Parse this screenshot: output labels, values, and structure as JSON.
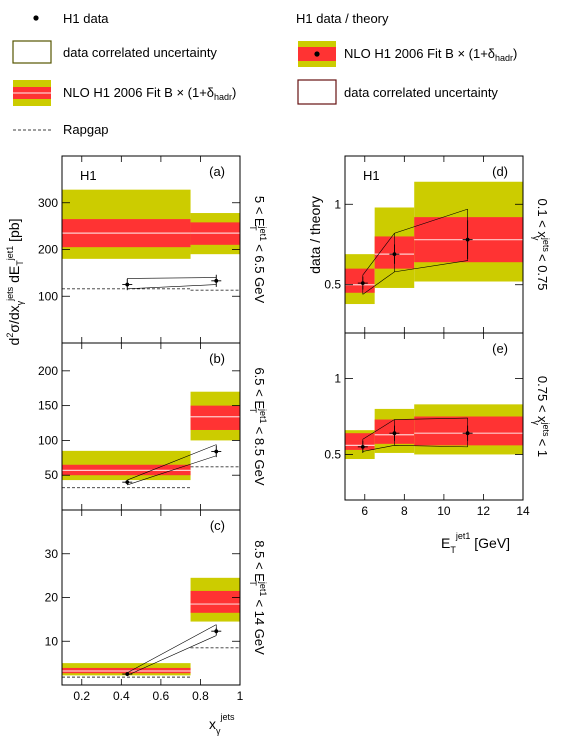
{
  "legend": {
    "h1_data": "H1 data",
    "corr_unc": "data correlated uncertainty",
    "nlo": "NLO H1 2006 Fit B × (1+δ",
    "nlo_sub": "hadr",
    "nlo_end": ")",
    "rapgap": "Rapgap",
    "ratio_title": "H1 data / theory"
  },
  "colors": {
    "scale_band": "#cccc00",
    "pdf_band": "#ff3333",
    "central": "#ffcccc",
    "corr_box_left": "#555500",
    "corr_box_right": "#661111"
  },
  "chart_data": [
    {
      "id": "a",
      "type": "bar",
      "tag": "H1",
      "letter": "(a)",
      "ylabel": "d²σ/dx_γ^jets dE_T^jet1 [pb]",
      "side_label": {
        "pre": "5 < E",
        "sup": "jet1",
        "sub": "T",
        "post": " < 6.5 GeV"
      },
      "xlim": [
        0.1,
        1.0
      ],
      "ylim": [
        0,
        400
      ],
      "yticks": [
        100,
        200,
        300
      ],
      "bins": [
        [
          0.1,
          0.75
        ],
        [
          0.75,
          1.0
        ]
      ],
      "data": [
        {
          "x": 0.43,
          "y": 125,
          "err": 12
        },
        {
          "x": 0.88,
          "y": 133,
          "err": 13
        }
      ],
      "nlo": [
        {
          "central": 235,
          "pdf": [
            205,
            265
          ],
          "scale": [
            180,
            328
          ]
        },
        {
          "central": 235,
          "pdf": [
            210,
            258
          ],
          "scale": [
            190,
            278
          ]
        }
      ],
      "corr": [
        {
          "x": [
            0.43,
            0.88
          ],
          "lo": [
            116,
            125
          ],
          "hi": [
            138,
            140
          ]
        }
      ],
      "rapgap": [
        {
          "x": [
            0.1,
            0.75
          ],
          "y": [
            116,
            116
          ]
        },
        {
          "x": [
            0.75,
            1.0
          ],
          "y": [
            113,
            113
          ]
        }
      ]
    },
    {
      "id": "b",
      "type": "bar",
      "letter": "(b)",
      "side_label": {
        "pre": "6.5 < E",
        "sup": "jet1",
        "sub": "T",
        "post": " < 8.5 GeV"
      },
      "xlim": [
        0.1,
        1.0
      ],
      "ylim": [
        0,
        240
      ],
      "yticks": [
        50,
        100,
        150,
        200
      ],
      "bins": [
        [
          0.1,
          0.75
        ],
        [
          0.75,
          1.0
        ]
      ],
      "data": [
        {
          "x": 0.43,
          "y": 40,
          "err": 3
        },
        {
          "x": 0.88,
          "y": 84,
          "err": 8
        }
      ],
      "nlo": [
        {
          "central": 57,
          "pdf": [
            50,
            65
          ],
          "scale": [
            43,
            85
          ]
        },
        {
          "central": 134,
          "pdf": [
            115,
            150
          ],
          "scale": [
            100,
            170
          ]
        }
      ],
      "corr": [
        {
          "x": [
            0.43,
            0.88
          ],
          "lo": [
            36,
            78
          ],
          "hi": [
            43,
            94
          ]
        }
      ],
      "rapgap": [
        {
          "x": [
            0.1,
            0.75
          ],
          "y": [
            32,
            32
          ]
        },
        {
          "x": [
            0.75,
            1.0
          ],
          "y": [
            62,
            62
          ]
        }
      ]
    },
    {
      "id": "c",
      "type": "bar",
      "letter": "(c)",
      "side_label": {
        "pre": "8.5 < E",
        "sup": "jet1",
        "sub": "T",
        "post": " < 14 GeV"
      },
      "xlabel": "x_γ^jets",
      "xlim": [
        0.1,
        1.0
      ],
      "ylim": [
        0,
        40
      ],
      "yticks": [
        10,
        20,
        30
      ],
      "xticks": [
        0.2,
        0.4,
        0.6,
        0.8,
        1
      ],
      "bins": [
        [
          0.1,
          0.75
        ],
        [
          0.75,
          1.0
        ]
      ],
      "data": [
        {
          "x": 0.43,
          "y": 2.5,
          "err": 0.3
        },
        {
          "x": 0.88,
          "y": 12.3,
          "err": 0.8
        }
      ],
      "nlo": [
        {
          "central": 3.2,
          "pdf": [
            2.7,
            3.9
          ],
          "scale": [
            2.2,
            5.0
          ]
        },
        {
          "central": 18.5,
          "pdf": [
            16.5,
            21.5
          ],
          "scale": [
            14.5,
            24.5
          ]
        }
      ],
      "corr": [
        {
          "x": [
            0.43,
            0.88
          ],
          "lo": [
            2.2,
            11.3
          ],
          "hi": [
            2.8,
            13.8
          ]
        }
      ],
      "rapgap": [
        {
          "x": [
            0.1,
            0.75
          ],
          "y": [
            1.8,
            1.8
          ]
        },
        {
          "x": [
            0.75,
            1.0
          ],
          "y": [
            8.5,
            8.5
          ]
        }
      ]
    },
    {
      "id": "d",
      "type": "bar",
      "tag": "H1",
      "letter": "(d)",
      "ylabel": "data / theory",
      "side_label": {
        "pre": "0.1 < x",
        "sup": "jets",
        "sub": "γ",
        "post": " < 0.75"
      },
      "xlim": [
        5,
        14
      ],
      "ylim": [
        0.2,
        1.3
      ],
      "yticks": [
        0.5,
        1
      ],
      "bins": [
        [
          5,
          6.5
        ],
        [
          6.5,
          8.5
        ],
        [
          8.5,
          14
        ]
      ],
      "data": [
        {
          "x": 5.9,
          "y": 0.51,
          "err": 0.04
        },
        {
          "x": 7.5,
          "y": 0.69,
          "err": 0.06
        },
        {
          "x": 11.2,
          "y": 0.78,
          "err": 0.12
        }
      ],
      "nlo": [
        {
          "central": 0.5,
          "pdf": [
            0.45,
            0.6
          ],
          "scale": [
            0.38,
            0.69
          ]
        },
        {
          "central": 0.69,
          "pdf": [
            0.6,
            0.8
          ],
          "scale": [
            0.48,
            0.98
          ]
        },
        {
          "central": 0.78,
          "pdf": [
            0.64,
            0.92
          ],
          "scale": [
            0.52,
            1.14
          ]
        }
      ],
      "corr": [
        {
          "x": [
            5.9,
            7.5,
            11.2
          ],
          "lo": [
            0.44,
            0.58,
            0.65
          ],
          "hi": [
            0.56,
            0.82,
            0.97
          ]
        }
      ],
      "rapgap": []
    },
    {
      "id": "e",
      "type": "bar",
      "letter": "(e)",
      "side_label": {
        "pre": "0.75 < x",
        "sup": "jets",
        "sub": "γ",
        "post": " < 1"
      },
      "xlabel": "E_T^jet1 [GeV]",
      "xlim": [
        5,
        14
      ],
      "ylim": [
        0.2,
        1.3
      ],
      "yticks": [
        0.5,
        1
      ],
      "xticks": [
        6,
        8,
        10,
        12,
        14
      ],
      "bins": [
        [
          5,
          6.5
        ],
        [
          6.5,
          8.5
        ],
        [
          8.5,
          14
        ]
      ],
      "data": [
        {
          "x": 5.9,
          "y": 0.55,
          "err": 0.04
        },
        {
          "x": 7.5,
          "y": 0.64,
          "err": 0.05
        },
        {
          "x": 11.2,
          "y": 0.64,
          "err": 0.05
        }
      ],
      "nlo": [
        {
          "central": 0.56,
          "pdf": [
            0.53,
            0.64
          ],
          "scale": [
            0.47,
            0.66
          ]
        },
        {
          "central": 0.63,
          "pdf": [
            0.57,
            0.73
          ],
          "scale": [
            0.51,
            0.8
          ]
        },
        {
          "central": 0.64,
          "pdf": [
            0.56,
            0.75
          ],
          "scale": [
            0.5,
            0.83
          ]
        }
      ],
      "corr": [
        {
          "x": [
            5.9,
            7.5,
            11.2
          ],
          "lo": [
            0.52,
            0.56,
            0.55
          ],
          "hi": [
            0.6,
            0.73,
            0.74
          ]
        }
      ],
      "rapgap": []
    }
  ]
}
